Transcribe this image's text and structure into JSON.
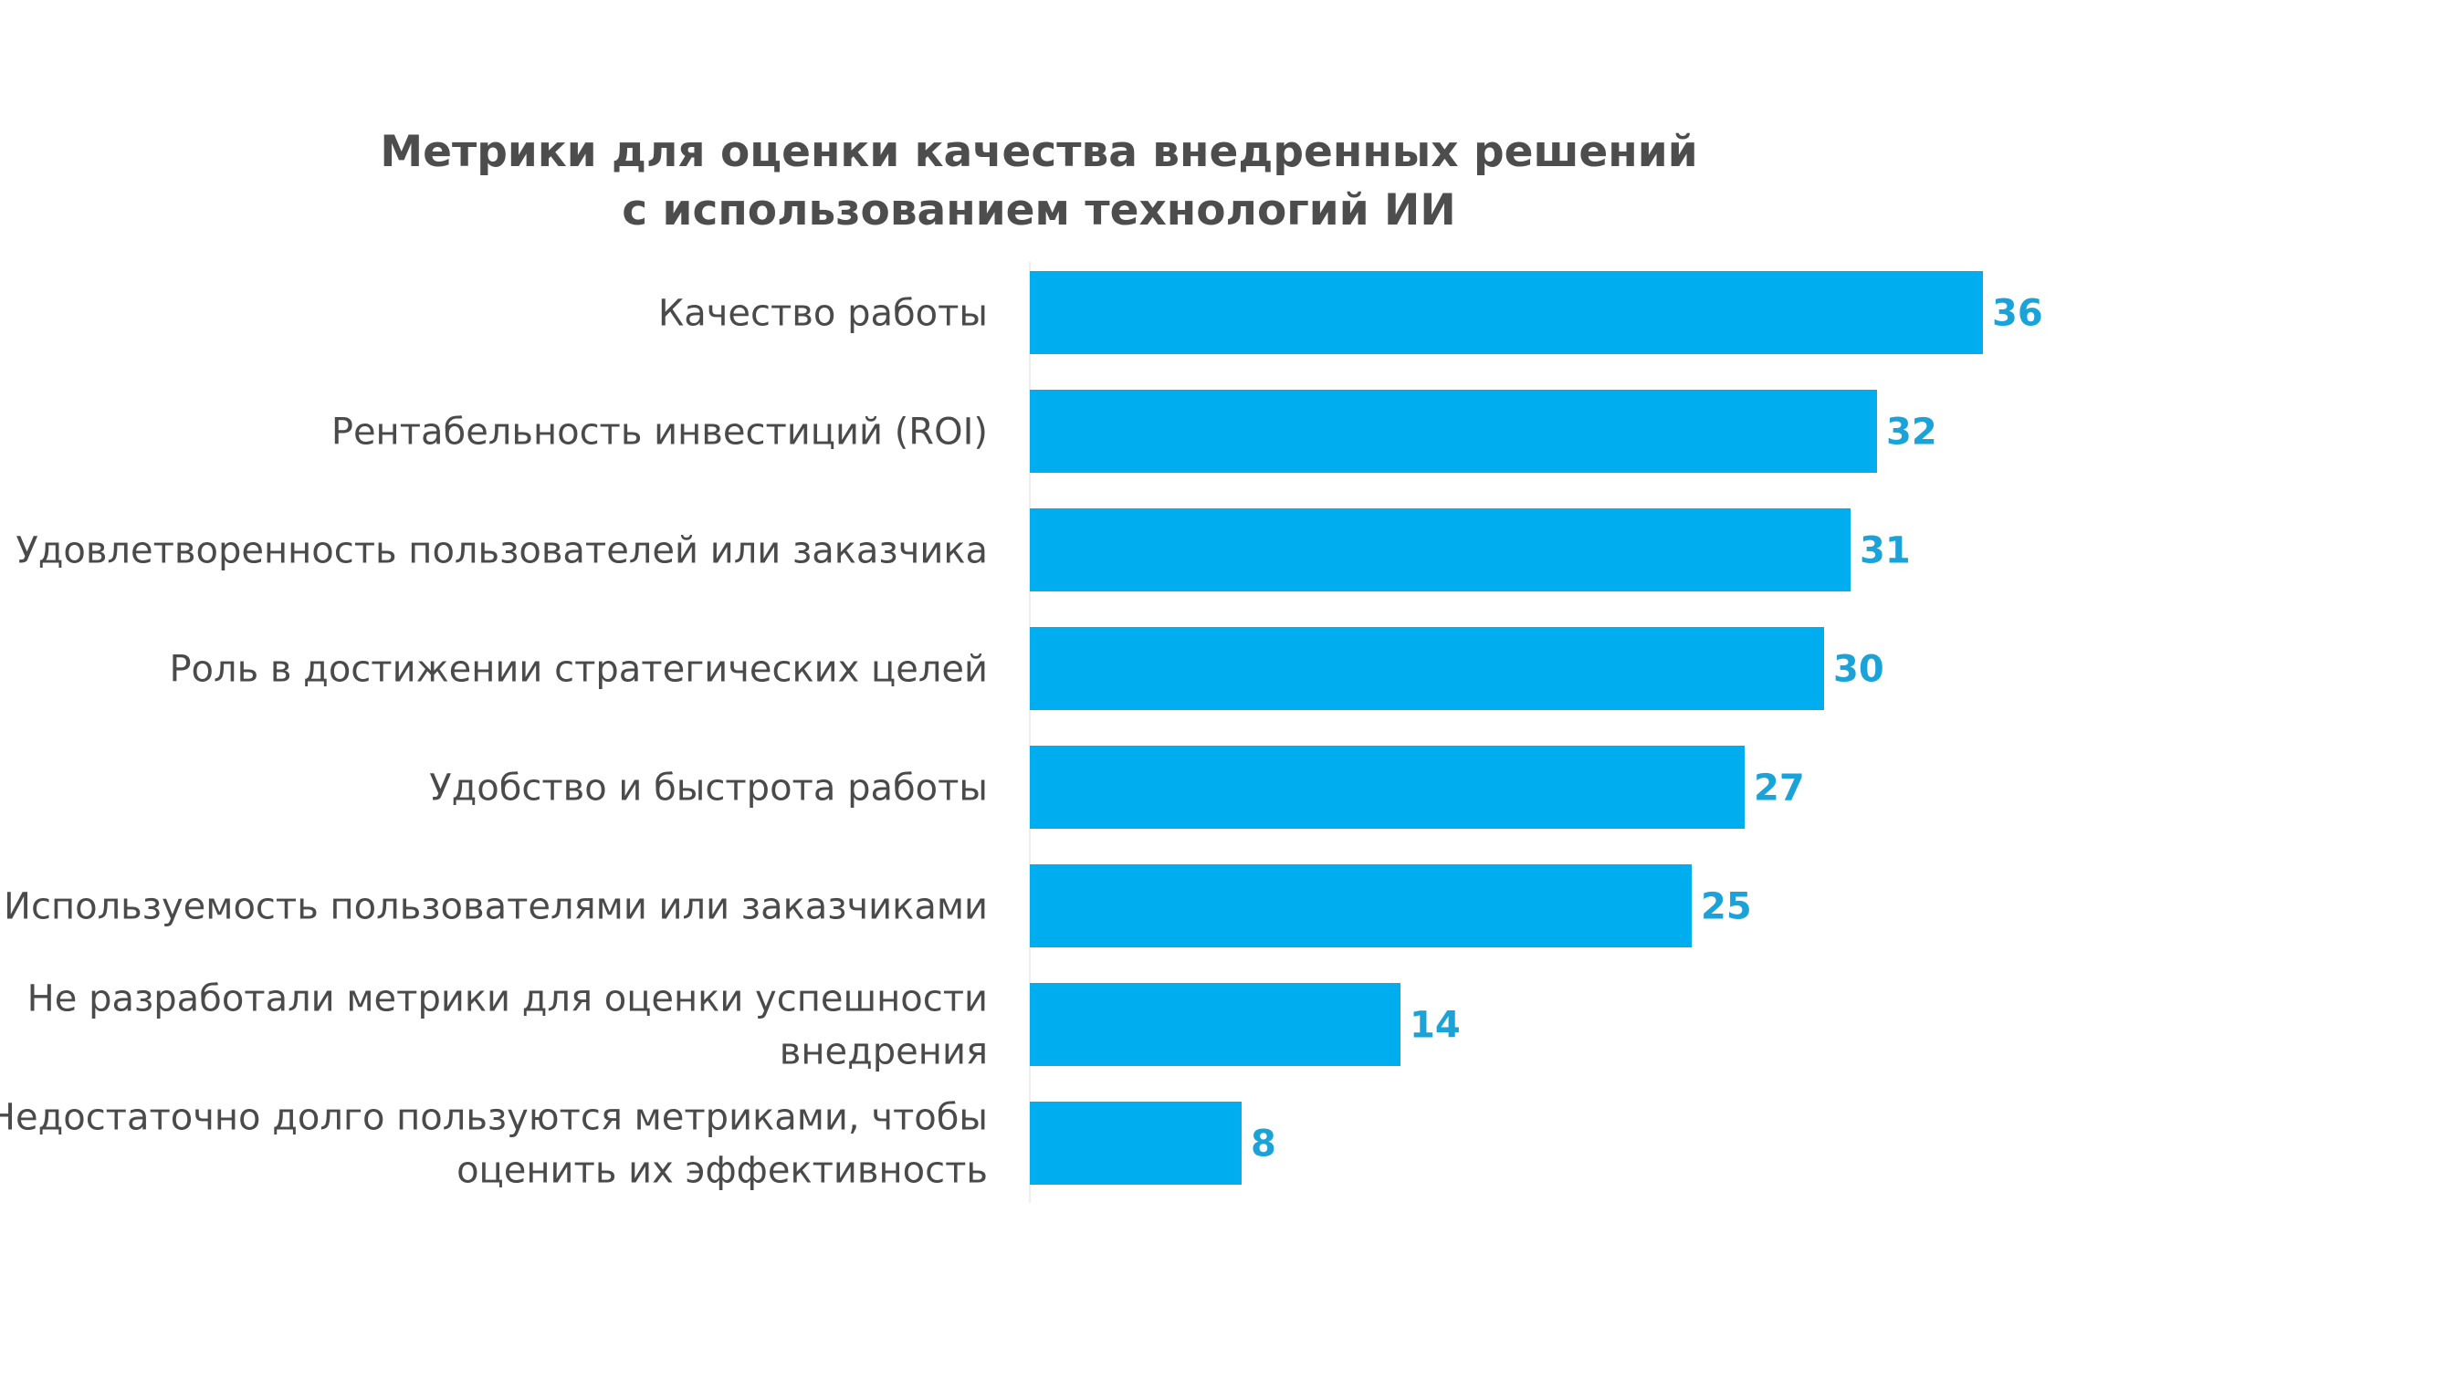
{
  "chart_data": {
    "type": "bar",
    "orientation": "horizontal",
    "title": [
      "Метрики для оценки качества внедренных решений",
      "с использованием технологий ИИ"
    ],
    "categories": [
      [
        "Качество работы"
      ],
      [
        "Рентабельность инвестиций (ROI)"
      ],
      [
        "Удовлетворенность пользователей или заказчика"
      ],
      [
        "Роль в достижении стратегических целей"
      ],
      [
        "Удобство и быстрота работы"
      ],
      [
        "Используемость пользователями или заказчиками"
      ],
      [
        "Не разработали метрики для оценки успешности",
        "внедрения"
      ],
      [
        "Недостаточно долго пользуются метриками, чтобы",
        "оценить их эффективность"
      ]
    ],
    "values": [
      36,
      32,
      31,
      30,
      27,
      25,
      14,
      8
    ],
    "xlim": [
      0,
      50
    ],
    "xlabel": "",
    "ylabel": "",
    "grid": false,
    "legend": "none",
    "bar_color": "#00aeef",
    "value_label_color": "#1aa3d9"
  }
}
